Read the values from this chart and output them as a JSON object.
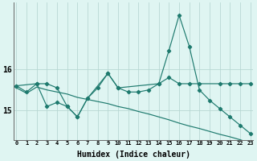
{
  "xlabel": "Humidex (Indice chaleur)",
  "background_color": "#dff5f2",
  "grid_color": "#b8d8d4",
  "line_color": "#1e7a6e",
  "x_ticks": [
    0,
    1,
    2,
    3,
    4,
    5,
    6,
    7,
    8,
    9,
    10,
    11,
    12,
    13,
    14,
    15,
    16,
    17,
    18,
    19,
    20,
    21,
    22,
    23
  ],
  "y_ticks": [
    15,
    16
  ],
  "ylim": [
    14.3,
    17.6
  ],
  "xlim": [
    -0.3,
    23.3
  ],
  "line1_x": [
    0,
    1,
    2,
    3,
    4,
    5,
    6,
    7,
    8,
    9,
    10,
    11,
    12,
    13,
    14,
    15,
    16,
    17,
    18,
    19,
    20,
    21,
    22,
    23
  ],
  "line1_y": [
    15.6,
    15.45,
    15.65,
    15.1,
    15.2,
    15.1,
    14.85,
    15.3,
    15.55,
    15.9,
    15.55,
    15.45,
    15.45,
    15.5,
    15.65,
    16.45,
    17.3,
    16.55,
    15.5,
    15.25,
    15.05,
    14.85,
    14.65,
    14.45
  ],
  "line2_x": [
    0,
    2,
    3,
    4,
    5,
    6,
    7,
    9,
    10,
    14,
    15,
    16,
    17,
    18,
    20,
    21,
    22,
    23
  ],
  "line2_y": [
    15.6,
    15.65,
    15.65,
    15.55,
    15.1,
    14.85,
    15.3,
    15.9,
    15.55,
    15.65,
    15.8,
    15.65,
    15.65,
    15.65,
    15.65,
    15.65,
    15.65,
    15.65
  ],
  "line3_x": [
    0,
    1,
    2,
    3,
    4,
    5,
    6,
    7,
    8,
    9,
    10,
    11,
    12,
    13,
    14,
    15,
    16,
    17,
    18,
    19,
    20,
    21,
    22,
    23
  ],
  "line3_y": [
    15.55,
    15.42,
    15.57,
    15.5,
    15.45,
    15.4,
    15.32,
    15.27,
    15.22,
    15.17,
    15.1,
    15.05,
    14.98,
    14.92,
    14.85,
    14.78,
    14.7,
    14.63,
    14.57,
    14.5,
    14.43,
    14.37,
    14.3,
    14.22
  ]
}
